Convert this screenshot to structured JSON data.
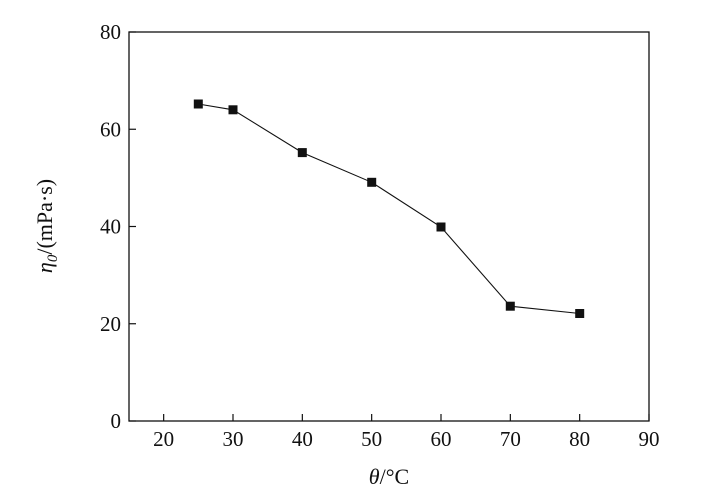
{
  "chart_data": {
    "type": "line",
    "xlabel_symbol": "θ",
    "xlabel_unit": "/°C",
    "ylabel_symbol": "η",
    "ylabel_subscript": "0",
    "ylabel_unit": "/(mPa·s)",
    "xlim": [
      15,
      90
    ],
    "ylim": [
      0,
      80
    ],
    "x_ticks": [
      20,
      30,
      40,
      50,
      60,
      70,
      80,
      90
    ],
    "y_ticks": [
      0,
      20,
      40,
      60,
      80
    ],
    "grid": false,
    "marker": "square",
    "series": [
      {
        "color": "#111111",
        "x": [
          25,
          30,
          40,
          50,
          60,
          70,
          80
        ],
        "y": [
          65.2,
          64.0,
          55.2,
          49.1,
          39.9,
          23.6,
          22.1
        ]
      }
    ]
  }
}
